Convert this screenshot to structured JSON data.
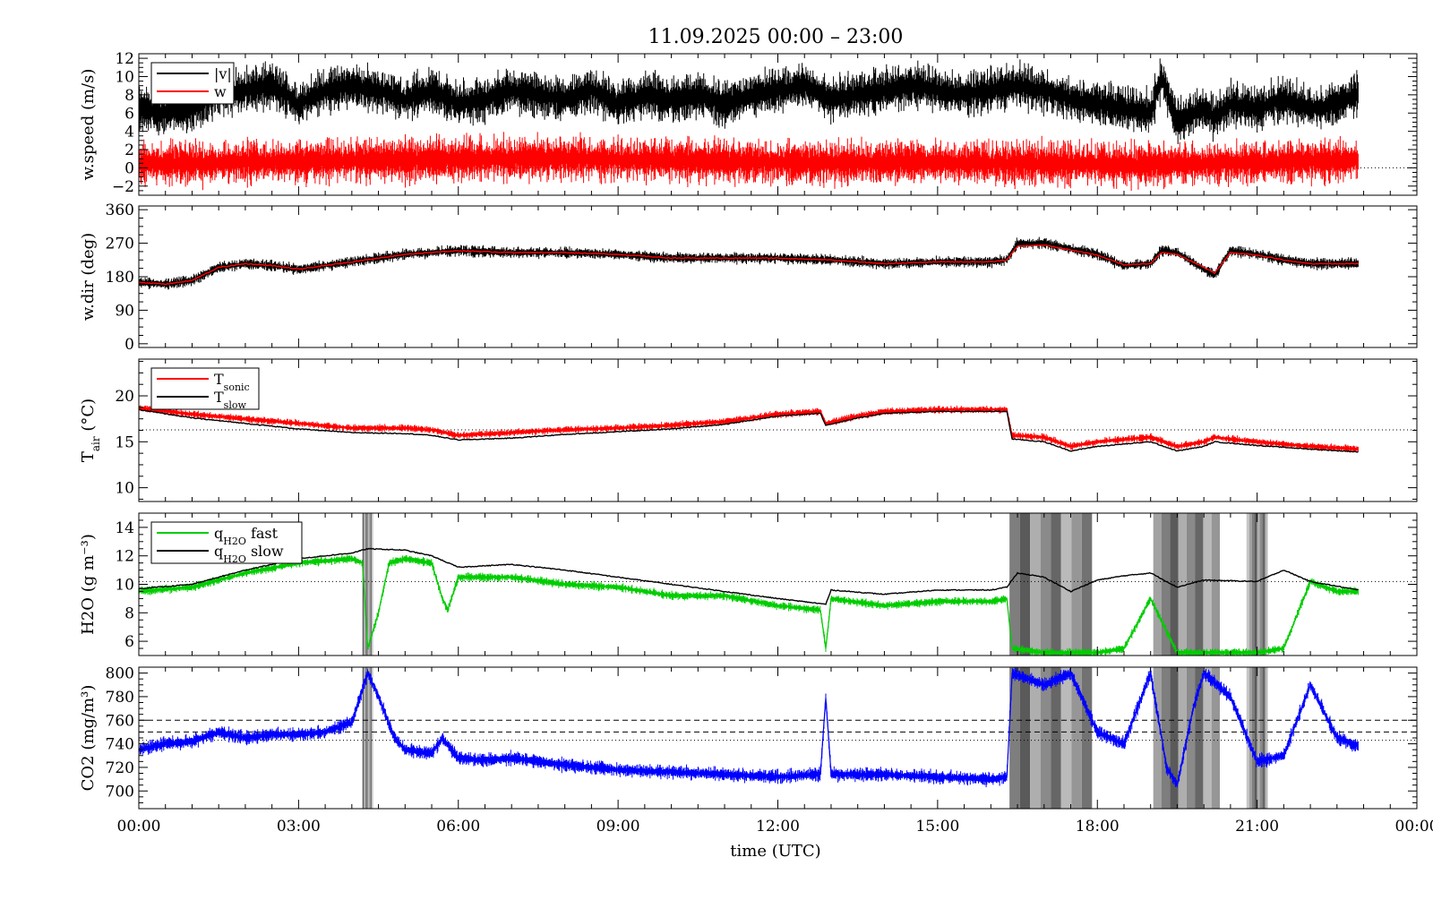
{
  "colors": {
    "black": "#000000",
    "red": "#ff0000",
    "green": "#00cc00",
    "blue": "#0000ff",
    "gray": "#888888"
  },
  "chart_data": {
    "type": "line",
    "title": "11.09.2025 00:00 – 23:00",
    "xlabel": "time (UTC)",
    "x_tick_labels": [
      "00:00",
      "03:00",
      "06:00",
      "09:00",
      "12:00",
      "15:00",
      "18:00",
      "21:00",
      "00:00"
    ],
    "xlim_hours": [
      0,
      24
    ],
    "panels": [
      {
        "id": "wspeed",
        "ylabel": "w.speed (m/s)",
        "ylim": [
          -3,
          12.5
        ],
        "yticks": [
          -2,
          0,
          2,
          4,
          6,
          8,
          10,
          12
        ],
        "ytick_labels": [
          "−2",
          "0",
          "2",
          "4",
          "6",
          "8",
          "10",
          "12"
        ],
        "ref_line": 0,
        "legend": [
          "|v|",
          "w"
        ],
        "series": [
          {
            "name": "|v|",
            "color": "#000000",
            "x": [
              0,
              0.5,
              1,
              1.5,
              2,
              2.5,
              3,
              3.5,
              4,
              4.5,
              5,
              5.5,
              6,
              6.5,
              7,
              7.5,
              8,
              8.5,
              9,
              9.5,
              10,
              10.5,
              11,
              11.5,
              12,
              12.5,
              13,
              13.5,
              14,
              14.5,
              15,
              15.5,
              16,
              16.5,
              17,
              17.5,
              18,
              18.5,
              19,
              19.2,
              19.5,
              20,
              20.2,
              20.5,
              21,
              21.5,
              22,
              22.5,
              22.9
            ],
            "y": [
              6.5,
              6,
              6.5,
              8,
              8.5,
              9,
              7,
              8.5,
              9,
              8.5,
              7.5,
              8.5,
              7,
              7.5,
              8.5,
              8,
              7.5,
              8.5,
              7,
              8,
              7.5,
              8,
              7,
              8,
              8.5,
              9,
              7.5,
              8,
              8.5,
              9,
              8.5,
              8,
              8.5,
              9,
              8.5,
              7.5,
              7,
              6.5,
              6,
              10,
              5,
              6.5,
              5.5,
              7,
              6.5,
              7.5,
              6.5,
              7,
              8.2
            ],
            "spread": 2.5
          },
          {
            "name": "w",
            "color": "#ff0000",
            "x": [
              0,
              1,
              2,
              3,
              4,
              5,
              6,
              7,
              8,
              9,
              10,
              11,
              12,
              13,
              14,
              15,
              16,
              17,
              18,
              19,
              19.5,
              20,
              21,
              22,
              22.9
            ],
            "y": [
              0.5,
              0.5,
              0.6,
              0.7,
              0.8,
              0.8,
              0.9,
              1,
              1,
              0.9,
              0.8,
              0.7,
              0.6,
              0.5,
              0.6,
              0.6,
              0.5,
              0.5,
              0.4,
              0.3,
              0.5,
              0.4,
              0.6,
              0.7,
              0.8
            ],
            "spread": 2.5
          }
        ]
      },
      {
        "id": "wdir",
        "ylabel": "w.dir (deg)",
        "ylim": [
          -10,
          370
        ],
        "yticks": [
          0,
          90,
          180,
          270,
          360
        ],
        "ytick_labels": [
          "0",
          "90",
          "180",
          "270",
          "360"
        ],
        "series": [
          {
            "name": "w.dir",
            "color": "#000000",
            "x": [
              0,
              0.5,
              1,
              1.5,
              2,
              2.5,
              3,
              3.5,
              4,
              5,
              6,
              7,
              8,
              9,
              10,
              11,
              12,
              13,
              14,
              15,
              16,
              16.3,
              16.5,
              17,
              17.5,
              18,
              18.5,
              19,
              19.2,
              19.5,
              20,
              20.2,
              20.5,
              21,
              21.5,
              22,
              22.5,
              22.9
            ],
            "y": [
              165,
              160,
              170,
              205,
              215,
              210,
              200,
              210,
              220,
              240,
              250,
              245,
              245,
              240,
              230,
              230,
              230,
              225,
              215,
              220,
              220,
              225,
              270,
              270,
              255,
              240,
              210,
              215,
              250,
              245,
              200,
              185,
              250,
              240,
              225,
              215,
              215,
              215
            ],
            "spread": 15
          },
          {
            "name": "w.dir mean",
            "color": "#ff0000",
            "x": [
              0,
              0.5,
              1,
              1.5,
              2,
              2.5,
              3,
              3.5,
              4,
              5,
              6,
              7,
              8,
              9,
              10,
              11,
              12,
              13,
              14,
              15,
              16,
              16.3,
              16.5,
              17,
              17.5,
              18,
              18.5,
              19,
              19.2,
              19.5,
              20,
              20.2,
              20.5,
              21,
              21.5,
              22,
              22.5,
              22.9
            ],
            "y": [
              165,
              160,
              170,
              205,
              215,
              210,
              200,
              210,
              220,
              240,
              250,
              245,
              245,
              240,
              230,
              230,
              230,
              225,
              215,
              220,
              220,
              225,
              262,
              265,
              252,
              238,
              212,
              215,
              245,
              240,
              205,
              190,
              245,
              238,
              225,
              215,
              215,
              215
            ],
            "spread": 0
          }
        ]
      },
      {
        "id": "tair",
        "ylabel": "T_air (°C)",
        "ylim": [
          8.5,
          24
        ],
        "yticks": [
          10,
          15,
          20
        ],
        "ytick_labels": [
          "10",
          "15",
          "20"
        ],
        "ref_line": 16.3,
        "legend": [
          "T_sonic",
          "T_slow"
        ],
        "series": [
          {
            "name": "T_sonic",
            "color": "#ff0000",
            "x": [
              0,
              1,
              2,
              3,
              4,
              5,
              5.5,
              6,
              7,
              8,
              9,
              10,
              11,
              12,
              12.8,
              12.9,
              13.5,
              14,
              15,
              16,
              16.3,
              16.4,
              17,
              17.5,
              18,
              19,
              19.5,
              20,
              20.2,
              21,
              22,
              22.9
            ],
            "y": [
              18.7,
              18,
              17.5,
              17,
              16.5,
              16.5,
              16.3,
              15.7,
              16,
              16.3,
              16.5,
              16.8,
              17.2,
              18,
              18.3,
              17,
              17.8,
              18.3,
              18.5,
              18.5,
              18.5,
              15.7,
              15.5,
              14.5,
              15,
              15.5,
              14.5,
              15,
              15.5,
              15,
              14.5,
              14.2
            ],
            "spread": 0.4
          },
          {
            "name": "T_slow",
            "color": "#000000",
            "x": [
              0,
              1,
              2,
              3,
              4,
              5,
              5.5,
              6,
              7,
              8,
              9,
              10,
              11,
              12,
              12.8,
              12.9,
              13.5,
              14,
              15,
              16,
              16.3,
              16.4,
              17,
              17.5,
              18,
              19,
              19.5,
              20,
              20.2,
              21,
              22,
              22.9
            ],
            "y": [
              18.5,
              17.6,
              17,
              16.4,
              16,
              15.9,
              15.7,
              15.2,
              15.4,
              15.8,
              16.1,
              16.4,
              16.9,
              17.8,
              18.1,
              16.8,
              17.6,
              18.1,
              18.3,
              18.3,
              18.3,
              15.3,
              15,
              14,
              14.5,
              15,
              14,
              14.5,
              15,
              14.6,
              14.2,
              13.9
            ],
            "spread": 0
          }
        ]
      },
      {
        "id": "h2o",
        "ylabel": "H2O (g m⁻³)",
        "ylim": [
          5,
          15
        ],
        "yticks": [
          6,
          8,
          10,
          12,
          14
        ],
        "ytick_labels": [
          "6",
          "8",
          "10",
          "12",
          "14"
        ],
        "ref_line": 10.2,
        "legend": [
          "q_H2O fast",
          "q_H2O slow"
        ],
        "series": [
          {
            "name": "q_H2O fast",
            "color": "#00cc00",
            "x": [
              0,
              1,
              2,
              3,
              4,
              4.2,
              4.3,
              4.5,
              4.7,
              5,
              5.5,
              5.7,
              5.8,
              6,
              7,
              8,
              9,
              10,
              11,
              12,
              12.8,
              12.9,
              13,
              14,
              15,
              16,
              16.3,
              16.4,
              17,
              18,
              18.5,
              19,
              19.5,
              20,
              21,
              21.5,
              22,
              22.5,
              22.9
            ],
            "y": [
              9.5,
              9.8,
              10.8,
              11.5,
              11.8,
              11.5,
              5.5,
              8,
              11.5,
              11.8,
              11.5,
              9,
              8.2,
              10.5,
              10.5,
              10,
              9.8,
              9.2,
              9.2,
              8.5,
              8.2,
              5.5,
              9,
              8.5,
              8.8,
              8.8,
              9,
              5.5,
              5.2,
              5.2,
              5.5,
              9,
              5.2,
              5.2,
              5.2,
              5.5,
              10.2,
              9.5,
              9.5
            ],
            "spread": 0.3
          },
          {
            "name": "q_H2O slow",
            "color": "#000000",
            "x": [
              0,
              1,
              2,
              3,
              4,
              4.3,
              5,
              5.5,
              6,
              7,
              8,
              9,
              10,
              11,
              12,
              12.9,
              13,
              14,
              15,
              16,
              16.3,
              16.5,
              17,
              17.5,
              18,
              18.5,
              19,
              19.5,
              20,
              21,
              21.5,
              22,
              22.9
            ],
            "y": [
              9.7,
              10,
              11,
              11.8,
              12.2,
              12.5,
              12.4,
              12,
              11.2,
              11.4,
              11,
              10.5,
              10,
              9.5,
              9,
              8.6,
              9.6,
              9.3,
              9.6,
              9.6,
              9.8,
              10.8,
              10.5,
              9.5,
              10.3,
              10.6,
              10.8,
              9.8,
              10.3,
              10.2,
              11,
              10.2,
              9.6
            ],
            "spread": 0
          }
        ]
      },
      {
        "id": "co2",
        "ylabel": "CO2 (mg/m³)",
        "ylim": [
          685,
          805
        ],
        "yticks": [
          700,
          720,
          740,
          760,
          780,
          800
        ],
        "ytick_labels": [
          "700",
          "720",
          "740",
          "760",
          "780",
          "800"
        ],
        "ref_line": 743,
        "dashed_lines": [
          760,
          750
        ],
        "series": [
          {
            "name": "CO2",
            "color": "#0000ff",
            "x": [
              0,
              0.5,
              1,
              1.5,
              2,
              2.5,
              3,
              3.5,
              4,
              4.3,
              4.5,
              4.8,
              5,
              5.5,
              5.7,
              6,
              6.5,
              7,
              8,
              9,
              10,
              11,
              12,
              12.8,
              12.9,
              13,
              14,
              15,
              16,
              16.3,
              16.4,
              17,
              17.5,
              18,
              18.5,
              19,
              19.3,
              19.5,
              19.8,
              20,
              20.5,
              21,
              21.5,
              22,
              22.5,
              22.9
            ],
            "y": [
              735,
              740,
              742,
              750,
              745,
              748,
              748,
              750,
              758,
              800,
              780,
              745,
              735,
              732,
              745,
              728,
              726,
              728,
              722,
              718,
              716,
              714,
              712,
              714,
              780,
              714,
              714,
              712,
              710,
              712,
              800,
              790,
              800,
              750,
              740,
              800,
              720,
              705,
              770,
              800,
              780,
              725,
              730,
              790,
              745,
              738
            ],
            "spread": 6
          }
        ]
      }
    ],
    "shaded_intervals_hours": [
      [
        4.2,
        4.4
      ],
      [
        16.35,
        17.9
      ],
      [
        19.05,
        20.3
      ],
      [
        20.8,
        21.2
      ]
    ]
  }
}
